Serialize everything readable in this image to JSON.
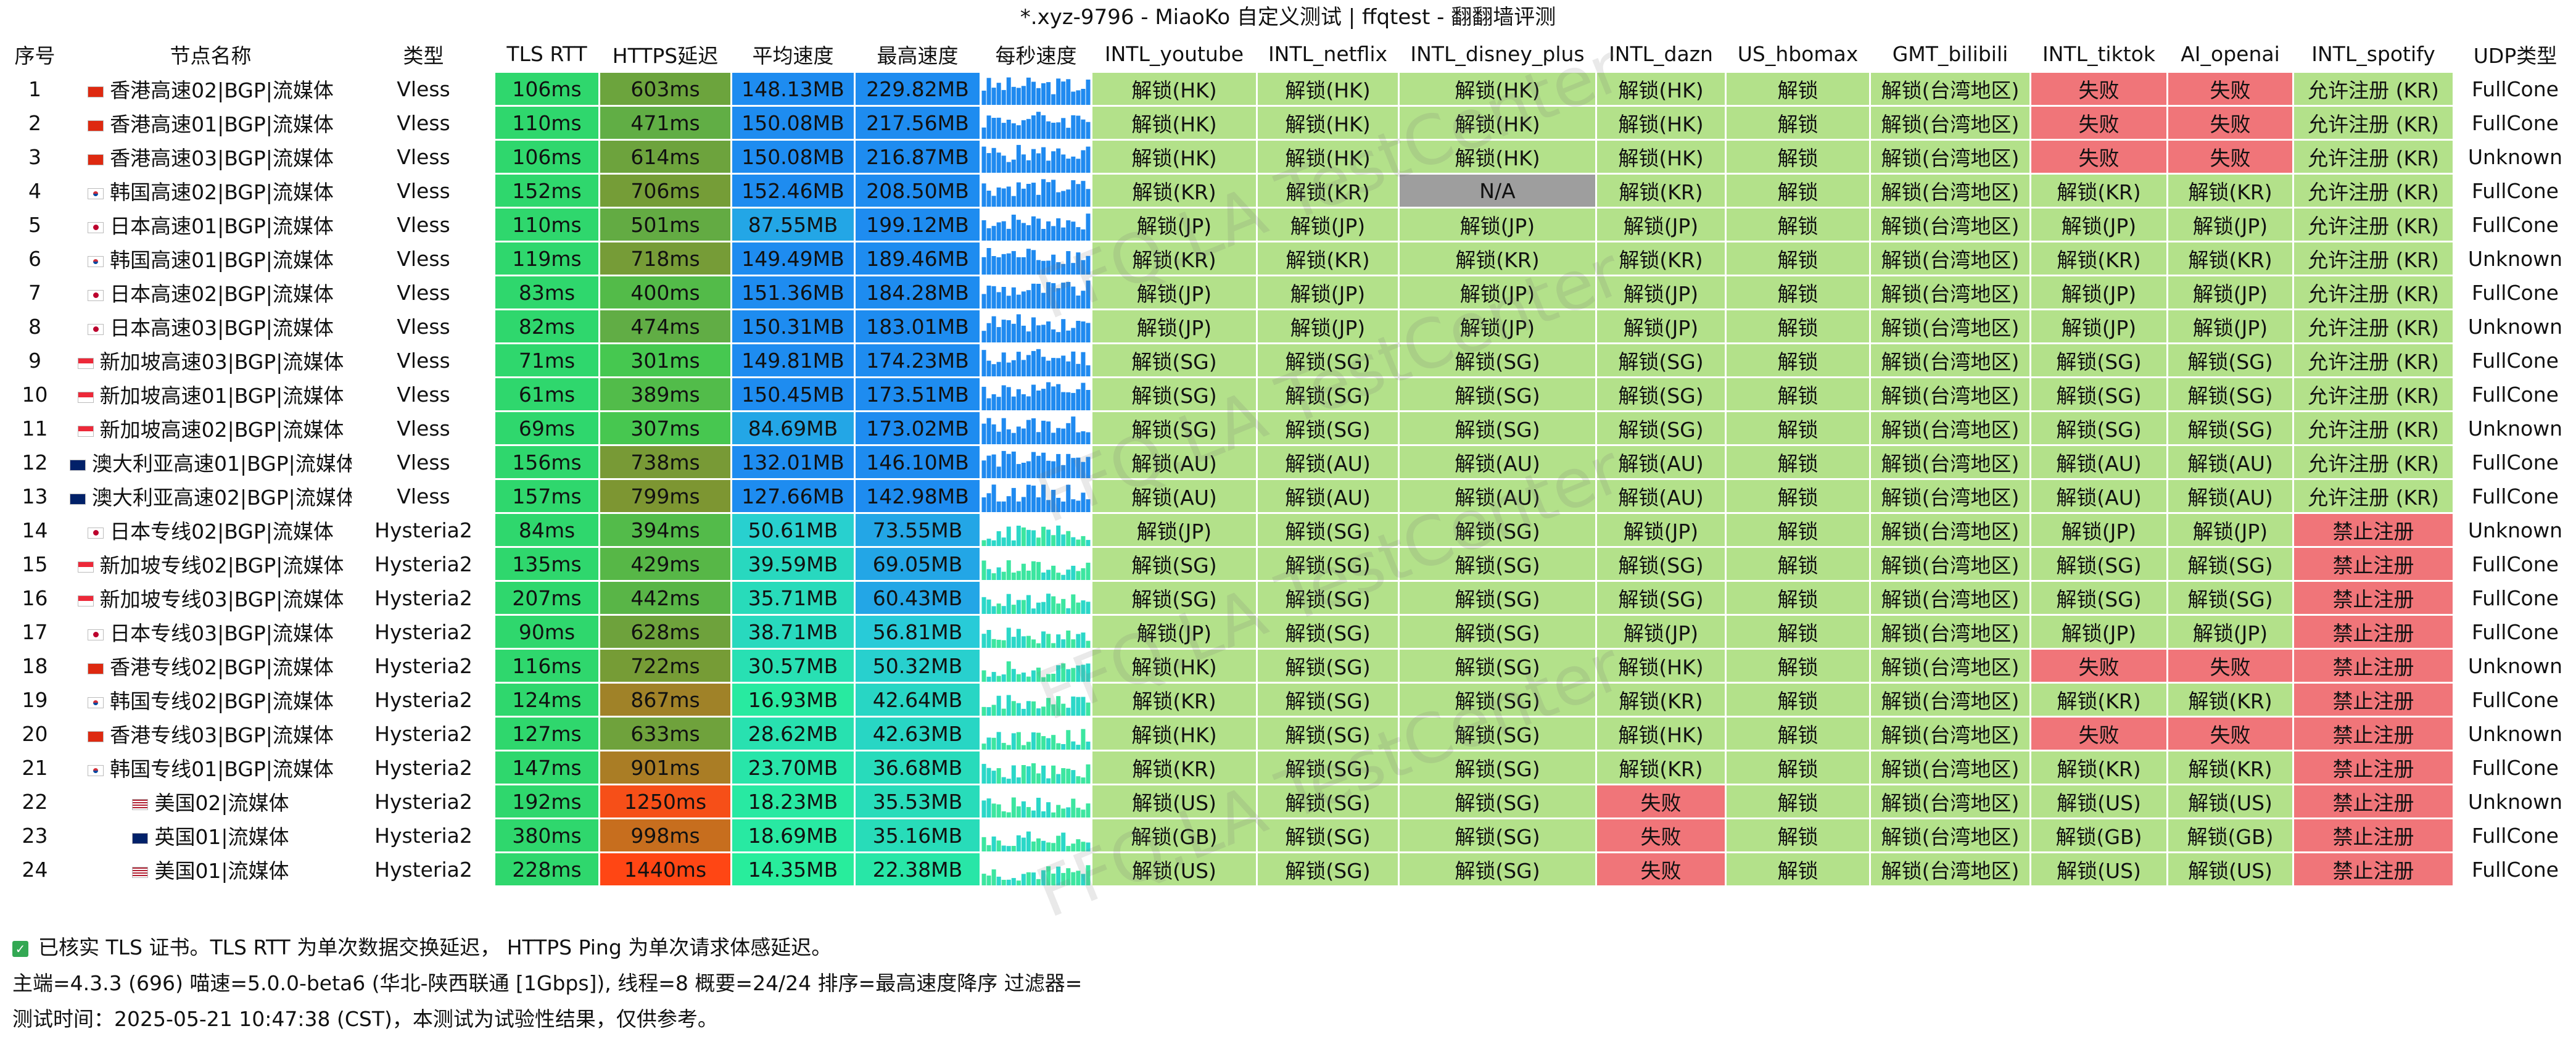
{
  "window": {
    "title": "*.xyz-9796 - MiaoKo 自定义测试 | ffqtest - 翻翻墙评测"
  },
  "watermark": "FFQ.LA TestCenter",
  "colors": {
    "unlock": "#b3e18a",
    "fail": "#f07579",
    "na": "#9e9e9e",
    "rtt": "#2fd76d",
    "sparkline": "#1f8af0",
    "footer_bg": "#f2f2f2"
  },
  "columns": [
    {
      "key": "idx",
      "label": "序号"
    },
    {
      "key": "name",
      "label": "节点名称"
    },
    {
      "key": "type",
      "label": "类型"
    },
    {
      "key": "rtt",
      "label": "TLS RTT"
    },
    {
      "key": "https",
      "label": "HTTPS延迟"
    },
    {
      "key": "avg",
      "label": "平均速度"
    },
    {
      "key": "max",
      "label": "最高速度"
    },
    {
      "key": "spark",
      "label": "每秒速度"
    },
    {
      "key": "yt",
      "label": "INTL_youtube"
    },
    {
      "key": "nf",
      "label": "INTL_netflix"
    },
    {
      "key": "dp",
      "label": "INTL_disney_plus"
    },
    {
      "key": "dz",
      "label": "INTL_dazn"
    },
    {
      "key": "hb",
      "label": "US_hbomax"
    },
    {
      "key": "bl",
      "label": "GMT_bilibili"
    },
    {
      "key": "tt",
      "label": "INTL_tiktok"
    },
    {
      "key": "ai",
      "label": "AI_openai"
    },
    {
      "key": "sp",
      "label": "INTL_spotify"
    },
    {
      "key": "udp",
      "label": "UDP类型"
    }
  ],
  "rows": [
    {
      "idx": "1",
      "flag": "hk",
      "name": "香港高速02|BGP|流媒体",
      "type": "Vless",
      "rtt": "106ms",
      "https": "603ms",
      "avg": "148.13MB",
      "max": "229.82MB",
      "yt": "解锁(HK)",
      "nf": "解锁(HK)",
      "dp": "解锁(HK)",
      "dz": "解锁(HK)",
      "hb": "解锁",
      "bl": "解锁(台湾地区)",
      "tt": "失败",
      "ai": "失败",
      "sp": "允许注册 (KR)",
      "udp": "FullCone"
    },
    {
      "idx": "2",
      "flag": "hk",
      "name": "香港高速01|BGP|流媒体",
      "type": "Vless",
      "rtt": "110ms",
      "https": "471ms",
      "avg": "150.08MB",
      "max": "217.56MB",
      "yt": "解锁(HK)",
      "nf": "解锁(HK)",
      "dp": "解锁(HK)",
      "dz": "解锁(HK)",
      "hb": "解锁",
      "bl": "解锁(台湾地区)",
      "tt": "失败",
      "ai": "失败",
      "sp": "允许注册 (KR)",
      "udp": "FullCone"
    },
    {
      "idx": "3",
      "flag": "hk",
      "name": "香港高速03|BGP|流媒体",
      "type": "Vless",
      "rtt": "106ms",
      "https": "614ms",
      "avg": "150.08MB",
      "max": "216.87MB",
      "yt": "解锁(HK)",
      "nf": "解锁(HK)",
      "dp": "解锁(HK)",
      "dz": "解锁(HK)",
      "hb": "解锁",
      "bl": "解锁(台湾地区)",
      "tt": "失败",
      "ai": "失败",
      "sp": "允许注册 (KR)",
      "udp": "Unknown"
    },
    {
      "idx": "4",
      "flag": "kr",
      "name": "韩国高速02|BGP|流媒体",
      "type": "Vless",
      "rtt": "152ms",
      "https": "706ms",
      "avg": "152.46MB",
      "max": "208.50MB",
      "yt": "解锁(KR)",
      "nf": "解锁(KR)",
      "dp": "N/A",
      "dz": "解锁(KR)",
      "hb": "解锁",
      "bl": "解锁(台湾地区)",
      "tt": "解锁(KR)",
      "ai": "解锁(KR)",
      "sp": "允许注册 (KR)",
      "udp": "FullCone"
    },
    {
      "idx": "5",
      "flag": "jp",
      "name": "日本高速01|BGP|流媒体",
      "type": "Vless",
      "rtt": "110ms",
      "https": "501ms",
      "avg": "87.55MB",
      "max": "199.12MB",
      "yt": "解锁(JP)",
      "nf": "解锁(JP)",
      "dp": "解锁(JP)",
      "dz": "解锁(JP)",
      "hb": "解锁",
      "bl": "解锁(台湾地区)",
      "tt": "解锁(JP)",
      "ai": "解锁(JP)",
      "sp": "允许注册 (KR)",
      "udp": "FullCone"
    },
    {
      "idx": "6",
      "flag": "kr",
      "name": "韩国高速01|BGP|流媒体",
      "type": "Vless",
      "rtt": "119ms",
      "https": "718ms",
      "avg": "149.49MB",
      "max": "189.46MB",
      "yt": "解锁(KR)",
      "nf": "解锁(KR)",
      "dp": "解锁(KR)",
      "dz": "解锁(KR)",
      "hb": "解锁",
      "bl": "解锁(台湾地区)",
      "tt": "解锁(KR)",
      "ai": "解锁(KR)",
      "sp": "允许注册 (KR)",
      "udp": "Unknown"
    },
    {
      "idx": "7",
      "flag": "jp",
      "name": "日本高速02|BGP|流媒体",
      "type": "Vless",
      "rtt": "83ms",
      "https": "400ms",
      "avg": "151.36MB",
      "max": "184.28MB",
      "yt": "解锁(JP)",
      "nf": "解锁(JP)",
      "dp": "解锁(JP)",
      "dz": "解锁(JP)",
      "hb": "解锁",
      "bl": "解锁(台湾地区)",
      "tt": "解锁(JP)",
      "ai": "解锁(JP)",
      "sp": "允许注册 (KR)",
      "udp": "FullCone"
    },
    {
      "idx": "8",
      "flag": "jp",
      "name": "日本高速03|BGP|流媒体",
      "type": "Vless",
      "rtt": "82ms",
      "https": "474ms",
      "avg": "150.31MB",
      "max": "183.01MB",
      "yt": "解锁(JP)",
      "nf": "解锁(JP)",
      "dp": "解锁(JP)",
      "dz": "解锁(JP)",
      "hb": "解锁",
      "bl": "解锁(台湾地区)",
      "tt": "解锁(JP)",
      "ai": "解锁(JP)",
      "sp": "允许注册 (KR)",
      "udp": "Unknown"
    },
    {
      "idx": "9",
      "flag": "sg",
      "name": "新加坡高速03|BGP|流媒体",
      "type": "Vless",
      "rtt": "71ms",
      "https": "301ms",
      "avg": "149.81MB",
      "max": "174.23MB",
      "yt": "解锁(SG)",
      "nf": "解锁(SG)",
      "dp": "解锁(SG)",
      "dz": "解锁(SG)",
      "hb": "解锁",
      "bl": "解锁(台湾地区)",
      "tt": "解锁(SG)",
      "ai": "解锁(SG)",
      "sp": "允许注册 (KR)",
      "udp": "FullCone"
    },
    {
      "idx": "10",
      "flag": "sg",
      "name": "新加坡高速01|BGP|流媒体",
      "type": "Vless",
      "rtt": "61ms",
      "https": "389ms",
      "avg": "150.45MB",
      "max": "173.51MB",
      "yt": "解锁(SG)",
      "nf": "解锁(SG)",
      "dp": "解锁(SG)",
      "dz": "解锁(SG)",
      "hb": "解锁",
      "bl": "解锁(台湾地区)",
      "tt": "解锁(SG)",
      "ai": "解锁(SG)",
      "sp": "允许注册 (KR)",
      "udp": "FullCone"
    },
    {
      "idx": "11",
      "flag": "sg",
      "name": "新加坡高速02|BGP|流媒体",
      "type": "Vless",
      "rtt": "69ms",
      "https": "307ms",
      "avg": "84.69MB",
      "max": "173.02MB",
      "yt": "解锁(SG)",
      "nf": "解锁(SG)",
      "dp": "解锁(SG)",
      "dz": "解锁(SG)",
      "hb": "解锁",
      "bl": "解锁(台湾地区)",
      "tt": "解锁(SG)",
      "ai": "解锁(SG)",
      "sp": "允许注册 (KR)",
      "udp": "Unknown"
    },
    {
      "idx": "12",
      "flag": "au",
      "name": "澳大利亚高速01|BGP|流媒体",
      "type": "Vless",
      "rtt": "156ms",
      "https": "738ms",
      "avg": "132.01MB",
      "max": "146.10MB",
      "yt": "解锁(AU)",
      "nf": "解锁(AU)",
      "dp": "解锁(AU)",
      "dz": "解锁(AU)",
      "hb": "解锁",
      "bl": "解锁(台湾地区)",
      "tt": "解锁(AU)",
      "ai": "解锁(AU)",
      "sp": "允许注册 (KR)",
      "udp": "FullCone"
    },
    {
      "idx": "13",
      "flag": "au",
      "name": "澳大利亚高速02|BGP|流媒体",
      "type": "Vless",
      "rtt": "157ms",
      "https": "799ms",
      "avg": "127.66MB",
      "max": "142.98MB",
      "yt": "解锁(AU)",
      "nf": "解锁(AU)",
      "dp": "解锁(AU)",
      "dz": "解锁(AU)",
      "hb": "解锁",
      "bl": "解锁(台湾地区)",
      "tt": "解锁(AU)",
      "ai": "解锁(AU)",
      "sp": "允许注册 (KR)",
      "udp": "FullCone"
    },
    {
      "idx": "14",
      "flag": "jp",
      "name": "日本专线02|BGP|流媒体",
      "type": "Hysteria2",
      "rtt": "84ms",
      "https": "394ms",
      "avg": "50.61MB",
      "max": "73.55MB",
      "yt": "解锁(JP)",
      "nf": "解锁(SG)",
      "dp": "解锁(SG)",
      "dz": "解锁(JP)",
      "hb": "解锁",
      "bl": "解锁(台湾地区)",
      "tt": "解锁(JP)",
      "ai": "解锁(JP)",
      "sp": "禁止注册",
      "udp": "Unknown"
    },
    {
      "idx": "15",
      "flag": "sg",
      "name": "新加坡专线02|BGP|流媒体",
      "type": "Hysteria2",
      "rtt": "135ms",
      "https": "429ms",
      "avg": "39.59MB",
      "max": "69.05MB",
      "yt": "解锁(SG)",
      "nf": "解锁(SG)",
      "dp": "解锁(SG)",
      "dz": "解锁(SG)",
      "hb": "解锁",
      "bl": "解锁(台湾地区)",
      "tt": "解锁(SG)",
      "ai": "解锁(SG)",
      "sp": "禁止注册",
      "udp": "FullCone"
    },
    {
      "idx": "16",
      "flag": "sg",
      "name": "新加坡专线03|BGP|流媒体",
      "type": "Hysteria2",
      "rtt": "207ms",
      "https": "442ms",
      "avg": "35.71MB",
      "max": "60.43MB",
      "yt": "解锁(SG)",
      "nf": "解锁(SG)",
      "dp": "解锁(SG)",
      "dz": "解锁(SG)",
      "hb": "解锁",
      "bl": "解锁(台湾地区)",
      "tt": "解锁(SG)",
      "ai": "解锁(SG)",
      "sp": "禁止注册",
      "udp": "FullCone"
    },
    {
      "idx": "17",
      "flag": "jp",
      "name": "日本专线03|BGP|流媒体",
      "type": "Hysteria2",
      "rtt": "90ms",
      "https": "628ms",
      "avg": "38.71MB",
      "max": "56.81MB",
      "yt": "解锁(JP)",
      "nf": "解锁(SG)",
      "dp": "解锁(SG)",
      "dz": "解锁(JP)",
      "hb": "解锁",
      "bl": "解锁(台湾地区)",
      "tt": "解锁(JP)",
      "ai": "解锁(JP)",
      "sp": "禁止注册",
      "udp": "FullCone"
    },
    {
      "idx": "18",
      "flag": "hk",
      "name": "香港专线02|BGP|流媒体",
      "type": "Hysteria2",
      "rtt": "116ms",
      "https": "722ms",
      "avg": "30.57MB",
      "max": "50.32MB",
      "yt": "解锁(HK)",
      "nf": "解锁(SG)",
      "dp": "解锁(SG)",
      "dz": "解锁(HK)",
      "hb": "解锁",
      "bl": "解锁(台湾地区)",
      "tt": "失败",
      "ai": "失败",
      "sp": "禁止注册",
      "udp": "Unknown"
    },
    {
      "idx": "19",
      "flag": "kr",
      "name": "韩国专线02|BGP|流媒体",
      "type": "Hysteria2",
      "rtt": "124ms",
      "https": "867ms",
      "avg": "16.93MB",
      "max": "42.64MB",
      "yt": "解锁(KR)",
      "nf": "解锁(SG)",
      "dp": "解锁(SG)",
      "dz": "解锁(KR)",
      "hb": "解锁",
      "bl": "解锁(台湾地区)",
      "tt": "解锁(KR)",
      "ai": "解锁(KR)",
      "sp": "禁止注册",
      "udp": "FullCone"
    },
    {
      "idx": "20",
      "flag": "hk",
      "name": "香港专线03|BGP|流媒体",
      "type": "Hysteria2",
      "rtt": "127ms",
      "https": "633ms",
      "avg": "28.62MB",
      "max": "42.63MB",
      "yt": "解锁(HK)",
      "nf": "解锁(SG)",
      "dp": "解锁(SG)",
      "dz": "解锁(HK)",
      "hb": "解锁",
      "bl": "解锁(台湾地区)",
      "tt": "失败",
      "ai": "失败",
      "sp": "禁止注册",
      "udp": "Unknown"
    },
    {
      "idx": "21",
      "flag": "kr",
      "name": "韩国专线01|BGP|流媒体",
      "type": "Hysteria2",
      "rtt": "147ms",
      "https": "901ms",
      "avg": "23.70MB",
      "max": "36.68MB",
      "yt": "解锁(KR)",
      "nf": "解锁(SG)",
      "dp": "解锁(SG)",
      "dz": "解锁(KR)",
      "hb": "解锁",
      "bl": "解锁(台湾地区)",
      "tt": "解锁(KR)",
      "ai": "解锁(KR)",
      "sp": "禁止注册",
      "udp": "FullCone"
    },
    {
      "idx": "22",
      "flag": "us",
      "name": "美国02|流媒体",
      "type": "Hysteria2",
      "rtt": "192ms",
      "https": "1250ms",
      "avg": "18.23MB",
      "max": "35.53MB",
      "yt": "解锁(US)",
      "nf": "解锁(SG)",
      "dp": "解锁(SG)",
      "dz": "失败",
      "hb": "解锁",
      "bl": "解锁(台湾地区)",
      "tt": "解锁(US)",
      "ai": "解锁(US)",
      "sp": "禁止注册",
      "udp": "Unknown"
    },
    {
      "idx": "23",
      "flag": "gb",
      "name": "英国01|流媒体",
      "type": "Hysteria2",
      "rtt": "380ms",
      "https": "998ms",
      "avg": "18.69MB",
      "max": "35.16MB",
      "yt": "解锁(GB)",
      "nf": "解锁(SG)",
      "dp": "解锁(SG)",
      "dz": "失败",
      "hb": "解锁",
      "bl": "解锁(台湾地区)",
      "tt": "解锁(GB)",
      "ai": "解锁(GB)",
      "sp": "禁止注册",
      "udp": "FullCone"
    },
    {
      "idx": "24",
      "flag": "us",
      "name": "美国01|流媒体",
      "type": "Hysteria2",
      "rtt": "228ms",
      "https": "1440ms",
      "avg": "14.35MB",
      "max": "22.38MB",
      "yt": "解锁(US)",
      "nf": "解锁(SG)",
      "dp": "解锁(SG)",
      "dz": "失败",
      "hb": "解锁",
      "bl": "解锁(台湾地区)",
      "tt": "解锁(US)",
      "ai": "解锁(US)",
      "sp": "禁止注册",
      "udp": "FullCone"
    }
  ],
  "footer": {
    "check_icon": "check-icon",
    "tls_note": "已核实 TLS 证书。TLS RTT 为单次数据交换延迟， HTTPS Ping 为单次请求体感延迟。",
    "info": "主端=4.3.3 (696) 喵速=5.0.0-beta6 (华北-陕西联通 [1Gbps]), 线程=8 概要=24/24 排序=最高速度降序 过滤器=",
    "time": "测试时间：2025-05-21 10:47:38 (CST)，本测试为试验性结果，仅供参考。"
  }
}
